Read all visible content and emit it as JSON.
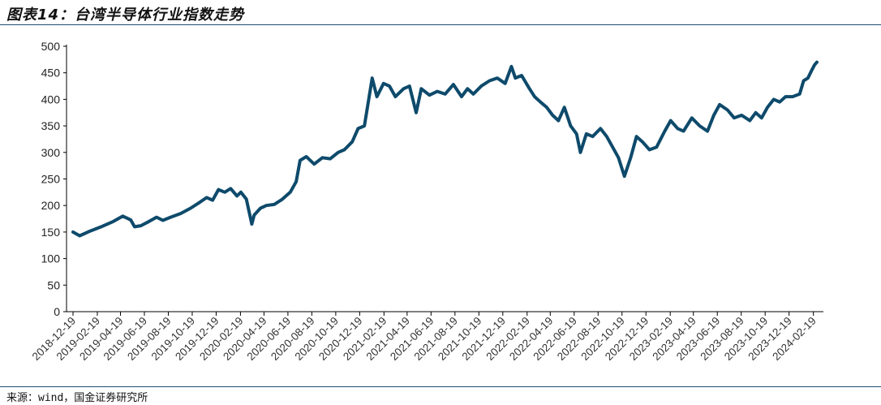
{
  "header": {
    "title": "图表14：台湾半导体行业指数走势"
  },
  "footer": {
    "source": "来源：wind，国金证券研究所"
  },
  "colors": {
    "line": "#0e4a6b",
    "rule": "#1f4e6e",
    "axis": "#000000"
  },
  "chart_data": {
    "type": "line",
    "ylim": [
      0,
      500
    ],
    "yticks": [
      "0",
      "50",
      "100",
      "150",
      "200",
      "250",
      "300",
      "350",
      "400",
      "450",
      "500"
    ],
    "xticks": [
      "2018-12-19",
      "2019-02-19",
      "2019-04-19",
      "2019-06-19",
      "2019-08-19",
      "2019-10-19",
      "2019-12-19",
      "2020-02-19",
      "2020-04-19",
      "2020-06-19",
      "2020-08-19",
      "2020-10-19",
      "2020-12-19",
      "2021-02-19",
      "2021-04-19",
      "2021-06-19",
      "2021-08-19",
      "2021-10-19",
      "2021-12-19",
      "2022-02-19",
      "2022-04-19",
      "2022-06-19",
      "2022-08-19",
      "2022-10-19",
      "2022-12-19",
      "2023-02-19",
      "2023-04-19",
      "2023-06-19",
      "2023-08-19",
      "2023-10-19",
      "2023-12-19",
      "2024-02-19"
    ],
    "series": [
      {
        "x": [
          "2018-12-19",
          "2019-01-05",
          "2019-02-01",
          "2019-03-01",
          "2019-04-01",
          "2019-04-25",
          "2019-05-15",
          "2019-05-25",
          "2019-06-10",
          "2019-07-01",
          "2019-07-20",
          "2019-08-05",
          "2019-08-25",
          "2019-09-20",
          "2019-10-15",
          "2019-11-05",
          "2019-11-25",
          "2019-12-10",
          "2019-12-25",
          "2020-01-10",
          "2020-01-25",
          "2020-02-10",
          "2020-02-20",
          "2020-03-05",
          "2020-03-19",
          "2020-03-25",
          "2020-04-10",
          "2020-04-25",
          "2020-05-15",
          "2020-06-05",
          "2020-06-25",
          "2020-07-10",
          "2020-07-20",
          "2020-08-05",
          "2020-08-25",
          "2020-09-15",
          "2020-10-05",
          "2020-10-25",
          "2020-11-10",
          "2020-11-30",
          "2020-12-15",
          "2020-12-31",
          "2021-01-10",
          "2021-01-20",
          "2021-02-01",
          "2021-02-18",
          "2021-03-05",
          "2021-03-20",
          "2021-04-10",
          "2021-04-25",
          "2021-05-12",
          "2021-05-25",
          "2021-06-15",
          "2021-07-05",
          "2021-07-25",
          "2021-08-15",
          "2021-09-05",
          "2021-09-20",
          "2021-10-05",
          "2021-10-25",
          "2021-11-15",
          "2021-12-05",
          "2021-12-25",
          "2022-01-10",
          "2022-01-20",
          "2022-02-05",
          "2022-02-25",
          "2022-03-10",
          "2022-03-25",
          "2022-04-10",
          "2022-04-25",
          "2022-05-10",
          "2022-05-25",
          "2022-06-10",
          "2022-06-25",
          "2022-07-05",
          "2022-07-20",
          "2022-08-05",
          "2022-08-25",
          "2022-09-10",
          "2022-09-25",
          "2022-10-10",
          "2022-10-25",
          "2022-11-10",
          "2022-11-25",
          "2022-12-10",
          "2022-12-28",
          "2023-01-15",
          "2023-02-05",
          "2023-02-20",
          "2023-03-10",
          "2023-03-25",
          "2023-04-15",
          "2023-05-05",
          "2023-05-25",
          "2023-06-10",
          "2023-06-25",
          "2023-07-15",
          "2023-08-01",
          "2023-08-20",
          "2023-09-10",
          "2023-09-25",
          "2023-10-10",
          "2023-10-25",
          "2023-11-10",
          "2023-11-25",
          "2023-12-10",
          "2023-12-28",
          "2024-01-15",
          "2024-01-25",
          "2024-02-05",
          "2024-02-15",
          "2024-02-22",
          "2024-02-28"
        ],
        "values": [
          150,
          143,
          152,
          160,
          170,
          180,
          173,
          160,
          162,
          170,
          178,
          172,
          178,
          185,
          195,
          205,
          215,
          210,
          230,
          225,
          232,
          218,
          225,
          212,
          165,
          182,
          195,
          200,
          202,
          212,
          225,
          245,
          285,
          292,
          278,
          290,
          288,
          300,
          305,
          320,
          345,
          350,
          395,
          440,
          405,
          430,
          425,
          405,
          420,
          425,
          375,
          420,
          408,
          415,
          410,
          428,
          405,
          420,
          410,
          425,
          435,
          440,
          430,
          462,
          440,
          445,
          420,
          405,
          395,
          385,
          370,
          360,
          385,
          350,
          335,
          300,
          335,
          330,
          345,
          330,
          310,
          290,
          255,
          290,
          330,
          320,
          305,
          310,
          340,
          360,
          345,
          340,
          365,
          350,
          340,
          370,
          390,
          380,
          365,
          370,
          360,
          375,
          365,
          385,
          400,
          395,
          405,
          405,
          410,
          435,
          440,
          455,
          465,
          470
        ]
      }
    ]
  }
}
